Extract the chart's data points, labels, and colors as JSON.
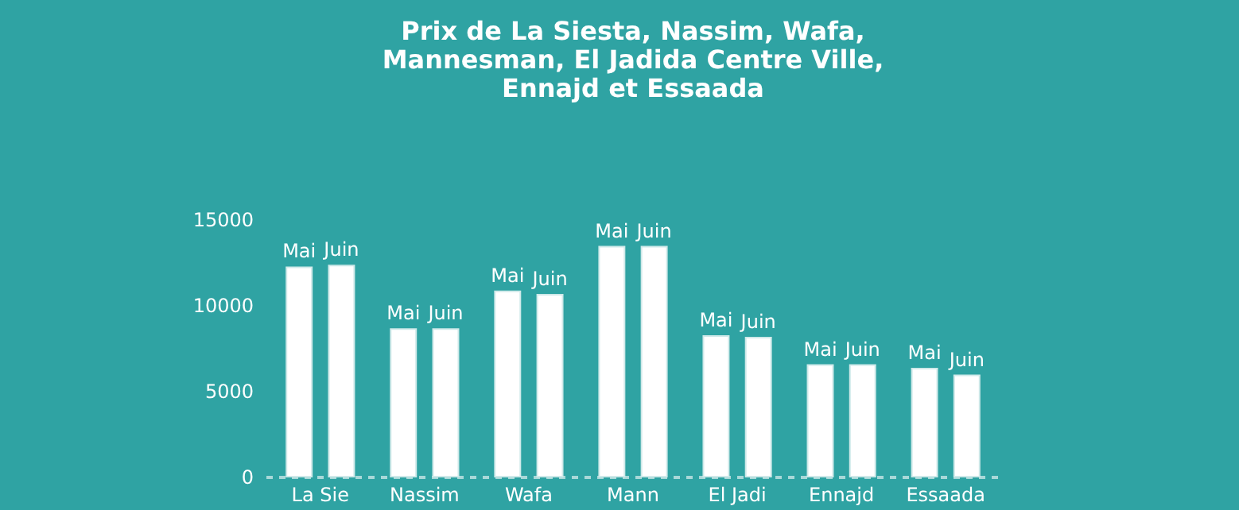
{
  "chart_data": {
    "type": "bar",
    "title": [
      "Prix de La Siesta, Nassim, Wafa,",
      "Mannesman, El Jadida Centre Ville,",
      "Ennajd et Essaada"
    ],
    "categories": [
      "La Sie",
      "Nassim",
      "Wafa",
      "Mann",
      "El Jadi",
      "Ennajd",
      "Essaada"
    ],
    "series": [
      {
        "name": "Mai",
        "color": "#ffffff",
        "values": [
          12200,
          8600,
          10800,
          13400,
          8200,
          6500,
          6300
        ]
      },
      {
        "name": "Juin",
        "color": "#ffffff",
        "values": [
          12300,
          8600,
          10600,
          13400,
          8100,
          6500,
          5900
        ]
      }
    ],
    "ylim": [
      0,
      15000
    ],
    "yticks": [
      0,
      5000,
      10000,
      15000
    ],
    "grid": false
  }
}
